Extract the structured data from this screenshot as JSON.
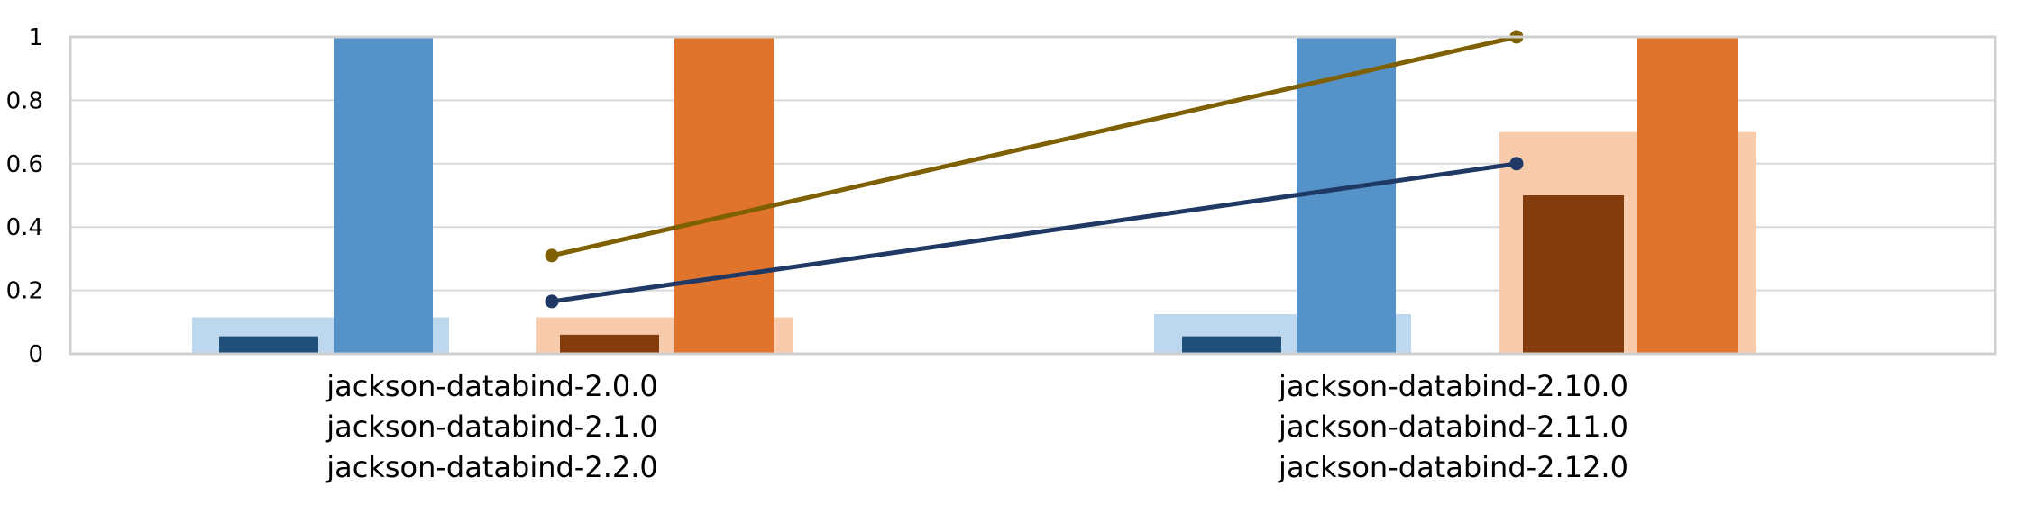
{
  "chart_data": {
    "type": "bar",
    "title": "",
    "xlabel": "",
    "ylabel": "",
    "ylim": [
      0,
      1
    ],
    "yticks": [
      "0",
      "0.2",
      "0.4",
      "0.6",
      "0.8",
      "1"
    ],
    "grid": true,
    "legend": "none",
    "groups": [
      {
        "labels": [
          "jackson-databind-2.0.0",
          "jackson-databind-2.1.0",
          "jackson-databind-2.2.0"
        ]
      },
      {
        "labels": [
          "jackson-databind-2.10.0",
          "jackson-databind-2.11.0",
          "jackson-databind-2.12.0"
        ]
      }
    ],
    "bar_sets": [
      {
        "color": "#BDD7EE",
        "values": [
          0.115,
          0.125
        ],
        "role": "background-blue"
      },
      {
        "color": "#F8CBAD",
        "values": [
          0.115,
          0.7
        ],
        "role": "background-orange"
      },
      {
        "color": "#1F4E79",
        "values": [
          0.055,
          0.055
        ],
        "role": "dark-blue"
      },
      {
        "color": "#5592C8",
        "values": [
          1.0,
          1.0
        ],
        "role": "blue"
      },
      {
        "color": "#843C0C",
        "values": [
          0.06,
          0.5
        ],
        "role": "dark-orange"
      },
      {
        "color": "#E0742C",
        "values": [
          1.0,
          1.0
        ],
        "role": "orange"
      }
    ],
    "line_series": [
      {
        "color": "#7F6000",
        "values": [
          0.31,
          1.0
        ]
      },
      {
        "color": "#1F3864",
        "values": [
          0.165,
          0.6
        ]
      }
    ]
  }
}
